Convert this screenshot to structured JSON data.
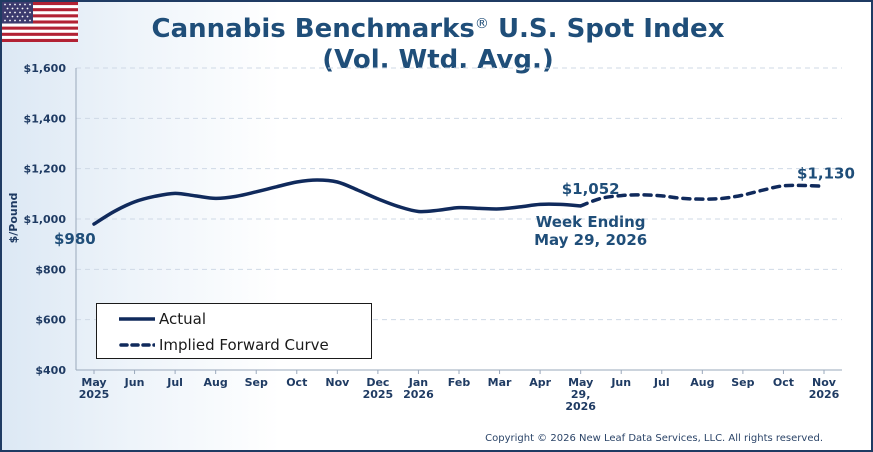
{
  "header": {
    "title_line1": "Cannabis Benchmarks",
    "title_reg": "®",
    "title_line1_rest": " U.S. Spot Index",
    "title_line2": "(Vol. Wtd. Avg.)",
    "flag_icon": "us-flag-icon"
  },
  "footer": {
    "copyright": "Copyright © 2026 New Leaf Data Services, LLC. All rights reserved."
  },
  "legend": {
    "actual": "Actual",
    "forward": "Implied Forward Curve"
  },
  "annotations": {
    "start_value": "$980",
    "last_actual_value": "$1,052",
    "end_value": "$1,130",
    "week_ending_line1": "Week Ending",
    "week_ending_line2": "May 29, 2026"
  },
  "colors": {
    "line": "#102a5c",
    "accent": "#1f4e79",
    "grid": "#cfd9e6"
  },
  "chart_data": {
    "type": "line",
    "title": "Cannabis Benchmarks® U.S. Spot Index (Vol. Wtd. Avg.)",
    "xlabel": "",
    "ylabel": "$/Pound",
    "ylim": [
      400,
      1600
    ],
    "yticks": [
      400,
      600,
      800,
      1000,
      1200,
      1400,
      1600
    ],
    "ytick_labels": [
      "$400",
      "$600",
      "$800",
      "$1,000",
      "$1,200",
      "$1,400",
      "$1,600"
    ],
    "xtick_labels": [
      [
        "May",
        "2025"
      ],
      [
        "Jun"
      ],
      [
        "Jul"
      ],
      [
        "Aug"
      ],
      [
        "Sep"
      ],
      [
        "Oct"
      ],
      [
        "Nov"
      ],
      [
        "Dec",
        "2025"
      ],
      [
        "Jan",
        "2026"
      ],
      [
        "Feb"
      ],
      [
        "Mar"
      ],
      [
        "Apr"
      ],
      [
        "May",
        "29,",
        "2026"
      ],
      [
        "Jun"
      ],
      [
        "Jul"
      ],
      [
        "Aug"
      ],
      [
        "Sep"
      ],
      [
        "Oct"
      ],
      [
        "Nov",
        "2026"
      ]
    ],
    "grid": true,
    "legend_position": "bottom-left",
    "series": [
      {
        "name": "Actual",
        "style": "solid",
        "x": [
          0,
          0.5,
          1,
          1.5,
          2,
          2.5,
          3,
          3.5,
          4,
          4.5,
          5,
          5.5,
          6,
          6.5,
          7,
          7.5,
          8,
          8.5,
          9,
          9.5,
          10,
          10.5,
          11,
          11.5,
          12
        ],
        "values": [
          980,
          1030,
          1068,
          1090,
          1102,
          1092,
          1082,
          1090,
          1108,
          1128,
          1147,
          1155,
          1147,
          1115,
          1080,
          1050,
          1030,
          1035,
          1045,
          1042,
          1040,
          1048,
          1058,
          1058,
          1052
        ]
      },
      {
        "name": "Implied Forward Curve",
        "style": "dashed",
        "x": [
          12,
          12.5,
          13,
          13.5,
          14,
          14.5,
          15,
          15.5,
          16,
          16.5,
          17,
          17.5,
          18
        ],
        "values": [
          1052,
          1082,
          1093,
          1096,
          1092,
          1082,
          1079,
          1082,
          1095,
          1115,
          1132,
          1133,
          1130
        ]
      }
    ]
  }
}
